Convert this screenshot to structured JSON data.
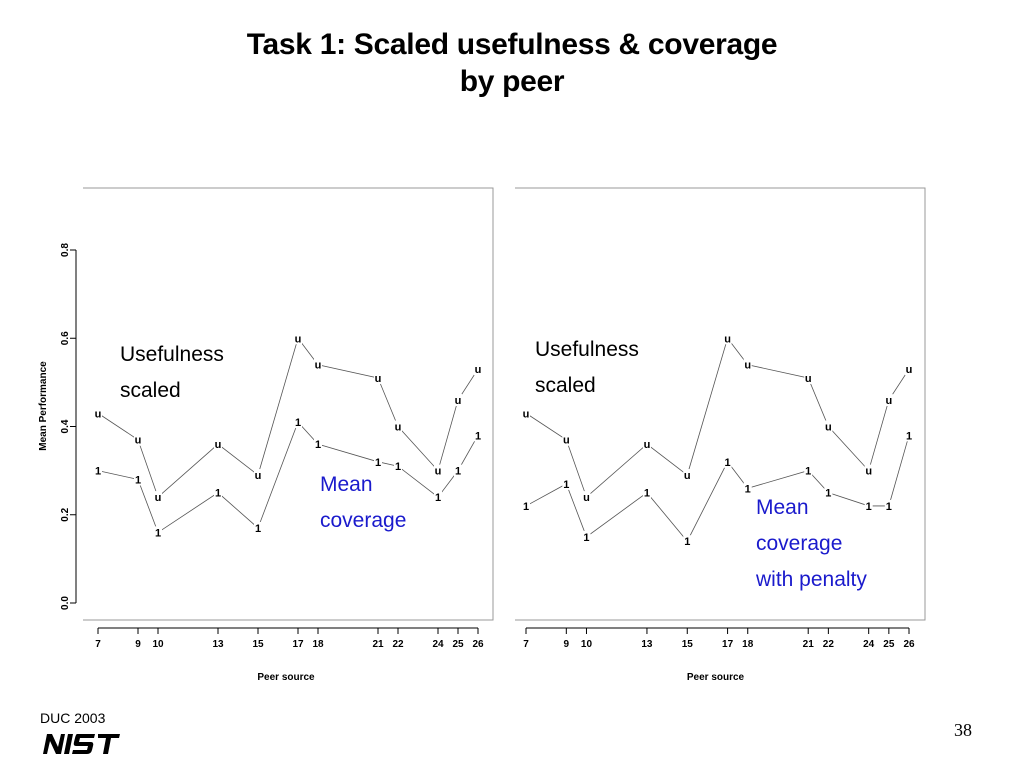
{
  "title": {
    "line1": "Task 1: Scaled usefulness & coverage",
    "line2": "by peer"
  },
  "footer": {
    "label": "DUC 2003",
    "logo": "NIST",
    "page_number": "38"
  },
  "chart_data": [
    {
      "type": "line",
      "x": [
        7,
        9,
        10,
        13,
        15,
        17,
        18,
        21,
        22,
        24,
        25,
        26
      ],
      "xlabel": "Peer source",
      "ylabel": "Mean Performance",
      "ylim": [
        0.0,
        0.8
      ],
      "yticks": [
        "0.0",
        "0.2",
        "0.4",
        "0.6",
        "0.8"
      ],
      "series": [
        {
          "marker": "u",
          "values": [
            0.43,
            0.37,
            0.24,
            0.36,
            0.29,
            0.6,
            0.54,
            0.51,
            0.4,
            0.3,
            0.46,
            0.53
          ]
        },
        {
          "marker": "1",
          "values": [
            0.3,
            0.28,
            0.16,
            0.25,
            0.17,
            0.41,
            0.36,
            0.32,
            0.31,
            0.24,
            0.3,
            0.38
          ]
        }
      ],
      "annotations": [
        {
          "lines": [
            "Usefulness",
            "scaled"
          ],
          "color": "#000000"
        },
        {
          "lines": [
            "Mean",
            "coverage"
          ],
          "color": "#1a1acc"
        }
      ]
    },
    {
      "type": "line",
      "x": [
        7,
        9,
        10,
        13,
        15,
        17,
        18,
        21,
        22,
        24,
        25,
        26
      ],
      "xlabel": "Peer source",
      "ylim": [
        0.0,
        0.8
      ],
      "series": [
        {
          "marker": "u",
          "values": [
            0.43,
            0.37,
            0.24,
            0.36,
            0.29,
            0.6,
            0.54,
            0.51,
            0.4,
            0.3,
            0.46,
            0.53
          ]
        },
        {
          "marker": "1",
          "values": [
            0.22,
            0.27,
            0.15,
            0.25,
            0.14,
            0.32,
            0.26,
            0.3,
            0.25,
            0.22,
            0.22,
            0.38
          ]
        }
      ],
      "annotations": [
        {
          "lines": [
            "Usefulness",
            "scaled"
          ],
          "color": "#000000"
        },
        {
          "lines": [
            "Mean",
            "coverage",
            "with penalty"
          ],
          "color": "#1a1acc"
        }
      ]
    }
  ]
}
